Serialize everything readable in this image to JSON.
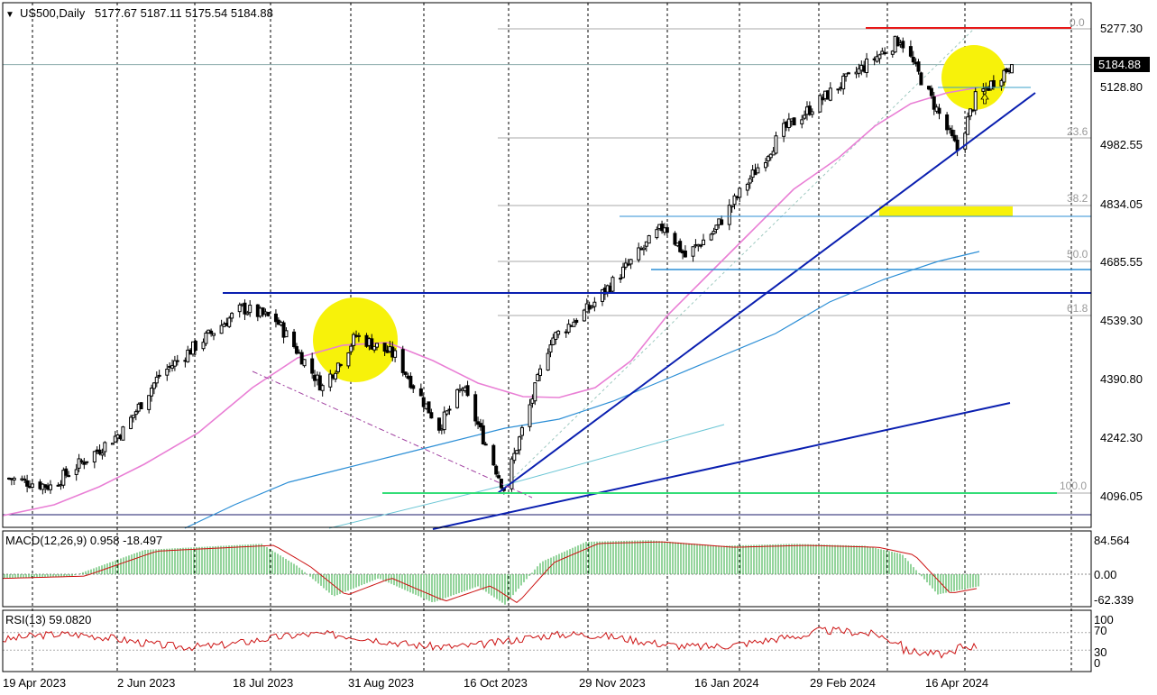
{
  "header": {
    "symbol_timeframe": "US500,Daily",
    "ohlc": "5177.67 5187.11 5175.54 5184.88"
  },
  "price_axis": {
    "ticks": [
      "5277.30",
      "5128.80",
      "4982.55",
      "4834.05",
      "4685.55",
      "4539.30",
      "4390.80",
      "4242.30",
      "4096.05"
    ],
    "current_price": "5184.88"
  },
  "time_axis": {
    "labels": [
      "19 Apr 2023",
      "2 Jun 2023",
      "18 Jul 2023",
      "31 Aug 2023",
      "16 Oct 2023",
      "29 Nov 2023",
      "16 Jan 2024",
      "29 Feb 2024",
      "16 Apr 2024"
    ]
  },
  "fibonacci": {
    "levels": [
      "0.0",
      "23.6",
      "38.2",
      "50.0",
      "61.8",
      "100.0"
    ]
  },
  "macd": {
    "label": "MACD(12,26,9) 0.958 -18.497",
    "ticks": [
      "84.564",
      "0.00",
      "-62.339"
    ]
  },
  "rsi": {
    "label": "RSI(13) 59.0820",
    "ticks": [
      "100",
      "70",
      "30",
      "0"
    ]
  },
  "colors": {
    "candle": "#000000",
    "ma_pink": "#e97fd5",
    "ma_blue": "#2d8fd6",
    "trend_blue": "#0a1fb0",
    "resistance_red": "#e81818",
    "support_green": "#33dd77",
    "highlight_yellow": "#f7f20a",
    "macd_hist": "#2aa83a",
    "macd_signal": "#cc1111",
    "rsi_line": "#cc1111"
  },
  "chart_data": {
    "type": "candlestick",
    "symbol": "US500",
    "timeframe": "Daily",
    "last_bar": {
      "open": 5177.67,
      "high": 5187.11,
      "low": 5175.54,
      "close": 5184.88
    },
    "price_range": [
      4060,
      5310
    ],
    "close_path": [
      {
        "date": "2023-04-19",
        "close": 4140
      },
      {
        "date": "2023-05-05",
        "close": 4120
      },
      {
        "date": "2023-06-02",
        "close": 4260
      },
      {
        "date": "2023-06-16",
        "close": 4400
      },
      {
        "date": "2023-07-18",
        "close": 4570
      },
      {
        "date": "2023-07-31",
        "close": 4540
      },
      {
        "date": "2023-08-18",
        "close": 4370
      },
      {
        "date": "2023-08-31",
        "close": 4500
      },
      {
        "date": "2023-09-15",
        "close": 4450
      },
      {
        "date": "2023-10-02",
        "close": 4270
      },
      {
        "date": "2023-10-11",
        "close": 4370
      },
      {
        "date": "2023-10-27",
        "close": 4115
      },
      {
        "date": "2023-11-14",
        "close": 4490
      },
      {
        "date": "2023-11-29",
        "close": 4570
      },
      {
        "date": "2023-12-28",
        "close": 4780
      },
      {
        "date": "2024-01-05",
        "close": 4700
      },
      {
        "date": "2024-01-16",
        "close": 4765
      },
      {
        "date": "2024-02-12",
        "close": 5020
      },
      {
        "date": "2024-03-04",
        "close": 5130
      },
      {
        "date": "2024-03-28",
        "close": 5250
      },
      {
        "date": "2024-04-19",
        "close": 4970
      },
      {
        "date": "2024-04-26",
        "close": 5100
      },
      {
        "date": "2024-05-10",
        "close": 5184.88
      }
    ],
    "macd": {
      "params": "12,26,9",
      "main": 0.958,
      "signal": -18.497,
      "range": [
        -62.339,
        84.564
      ]
    },
    "rsi": {
      "period": 13,
      "value": 59.082,
      "levels": [
        30,
        70
      ]
    }
  }
}
